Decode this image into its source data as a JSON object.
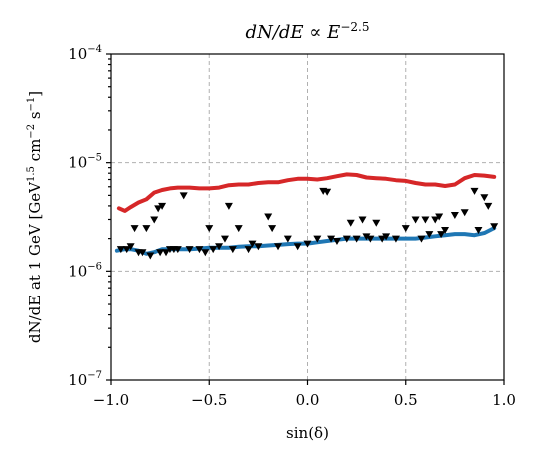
{
  "chart_data": {
    "type": "line",
    "title_parts": [
      "dN/dE ∝ E",
      "−2.5"
    ],
    "xlabel": "sin(δ)",
    "ylabel_parts": [
      "dN/dE at 1 GeV  [GeV",
      "1.5",
      " cm",
      "−2",
      " s",
      "−1",
      "]"
    ],
    "xlim": [
      -1.0,
      1.0
    ],
    "ylim": [
      1e-07,
      0.0001
    ],
    "yscale": "log",
    "grid": true,
    "x_tick_labels": [
      "−1.0",
      "−0.5",
      "0.0",
      "0.5",
      "1.0"
    ],
    "x_ticks": [
      -1.0,
      -0.5,
      0.0,
      0.5,
      1.0
    ],
    "y_tick_labels": [
      {
        "base": "10",
        "exp": "−4",
        "value": 0.0001
      },
      {
        "base": "10",
        "exp": "−5",
        "value": 1e-05
      },
      {
        "base": "10",
        "exp": "−6",
        "value": 1e-06
      },
      {
        "base": "10",
        "exp": "−7",
        "value": 1e-07
      }
    ],
    "series": [
      {
        "style": "line",
        "color": "#d62728",
        "x": [
          -0.96,
          -0.93,
          -0.9,
          -0.86,
          -0.82,
          -0.78,
          -0.74,
          -0.7,
          -0.66,
          -0.6,
          -0.55,
          -0.5,
          -0.45,
          -0.4,
          -0.35,
          -0.3,
          -0.25,
          -0.2,
          -0.15,
          -0.1,
          -0.05,
          0.0,
          0.05,
          0.1,
          0.15,
          0.2,
          0.25,
          0.3,
          0.35,
          0.4,
          0.45,
          0.5,
          0.55,
          0.6,
          0.65,
          0.7,
          0.75,
          0.8,
          0.85,
          0.9,
          0.95
        ],
        "y": [
          3.8e-06,
          3.6e-06,
          3.9e-06,
          4.3e-06,
          4.6e-06,
          5.3e-06,
          5.6e-06,
          5.8e-06,
          5.9e-06,
          5.9e-06,
          5.8e-06,
          5.8e-06,
          5.9e-06,
          6.2e-06,
          6.3e-06,
          6.3e-06,
          6.5e-06,
          6.6e-06,
          6.6e-06,
          6.9e-06,
          7.1e-06,
          7.1e-06,
          7e-06,
          7.2e-06,
          7.5e-06,
          7.8e-06,
          7.7e-06,
          7.3e-06,
          7.2e-06,
          7.1e-06,
          6.9e-06,
          6.8e-06,
          6.5e-06,
          6.3e-06,
          6.3e-06,
          6.1e-06,
          6.3e-06,
          7.2e-06,
          7.7e-06,
          7.6e-06,
          7.4e-06
        ]
      },
      {
        "style": "line",
        "color": "#1f77b4",
        "x": [
          -0.97,
          -0.93,
          -0.9,
          -0.86,
          -0.82,
          -0.78,
          -0.74,
          -0.7,
          -0.65,
          -0.6,
          -0.55,
          -0.5,
          -0.45,
          -0.4,
          -0.35,
          -0.3,
          -0.25,
          -0.2,
          -0.15,
          -0.1,
          -0.05,
          0.0,
          0.05,
          0.1,
          0.15,
          0.2,
          0.25,
          0.3,
          0.35,
          0.4,
          0.45,
          0.5,
          0.55,
          0.6,
          0.65,
          0.7,
          0.75,
          0.8,
          0.85,
          0.9,
          0.95
        ],
        "y": [
          1.55e-06,
          1.6e-06,
          1.6e-06,
          1.55e-06,
          1.45e-06,
          1.5e-06,
          1.6e-06,
          1.6e-06,
          1.6e-06,
          1.6e-06,
          1.62e-06,
          1.65e-06,
          1.65e-06,
          1.65e-06,
          1.68e-06,
          1.7e-06,
          1.7e-06,
          1.73e-06,
          1.75e-06,
          1.78e-06,
          1.8e-06,
          1.8e-06,
          1.85e-06,
          1.9e-06,
          1.95e-06,
          2e-06,
          2e-06,
          2e-06,
          2e-06,
          2e-06,
          2e-06,
          2e-06,
          2e-06,
          2.05e-06,
          2.1e-06,
          2.15e-06,
          2.2e-06,
          2.2e-06,
          2.15e-06,
          2.25e-06,
          2.5e-06
        ]
      },
      {
        "style": "scatter",
        "marker": "triangle-down",
        "color": "#000000",
        "x": [
          -0.95,
          -0.92,
          -0.9,
          -0.88,
          -0.86,
          -0.84,
          -0.82,
          -0.8,
          -0.78,
          -0.76,
          -0.75,
          -0.74,
          -0.72,
          -0.7,
          -0.68,
          -0.66,
          -0.63,
          -0.6,
          -0.55,
          -0.52,
          -0.5,
          -0.48,
          -0.45,
          -0.42,
          -0.4,
          -0.38,
          -0.35,
          -0.3,
          -0.28,
          -0.25,
          -0.2,
          -0.18,
          -0.15,
          -0.1,
          -0.05,
          0.0,
          0.05,
          0.08,
          0.1,
          0.12,
          0.15,
          0.2,
          0.22,
          0.25,
          0.28,
          0.3,
          0.32,
          0.35,
          0.38,
          0.4,
          0.45,
          0.5,
          0.55,
          0.58,
          0.6,
          0.62,
          0.65,
          0.67,
          0.68,
          0.7,
          0.75,
          0.8,
          0.85,
          0.87,
          0.9,
          0.92,
          0.95
        ],
        "y": [
          1.6e-06,
          1.6e-06,
          1.7e-06,
          2.5e-06,
          1.5e-06,
          1.5e-06,
          2.5e-06,
          1.4e-06,
          3e-06,
          3.8e-06,
          1.5e-06,
          4e-06,
          1.5e-06,
          1.6e-06,
          1.6e-06,
          1.6e-06,
          5e-06,
          1.6e-06,
          1.6e-06,
          1.5e-06,
          2.5e-06,
          1.6e-06,
          1.7e-06,
          2e-06,
          4e-06,
          1.6e-06,
          2.5e-06,
          1.6e-06,
          1.8e-06,
          1.7e-06,
          3.2e-06,
          2.5e-06,
          1.7e-06,
          2e-06,
          1.7e-06,
          1.8e-06,
          2e-06,
          5.5e-06,
          5.4e-06,
          2e-06,
          1.9e-06,
          2e-06,
          2.8e-06,
          2e-06,
          3e-06,
          2.1e-06,
          2e-06,
          2.8e-06,
          2e-06,
          2.1e-06,
          2e-06,
          2.5e-06,
          3e-06,
          2e-06,
          3e-06,
          2.2e-06,
          3e-06,
          3.2e-06,
          2.2e-06,
          2.4e-06,
          3.3e-06,
          3.5e-06,
          5.5e-06,
          2.4e-06,
          4.8e-06,
          4e-06,
          2.6e-06
        ]
      }
    ]
  }
}
